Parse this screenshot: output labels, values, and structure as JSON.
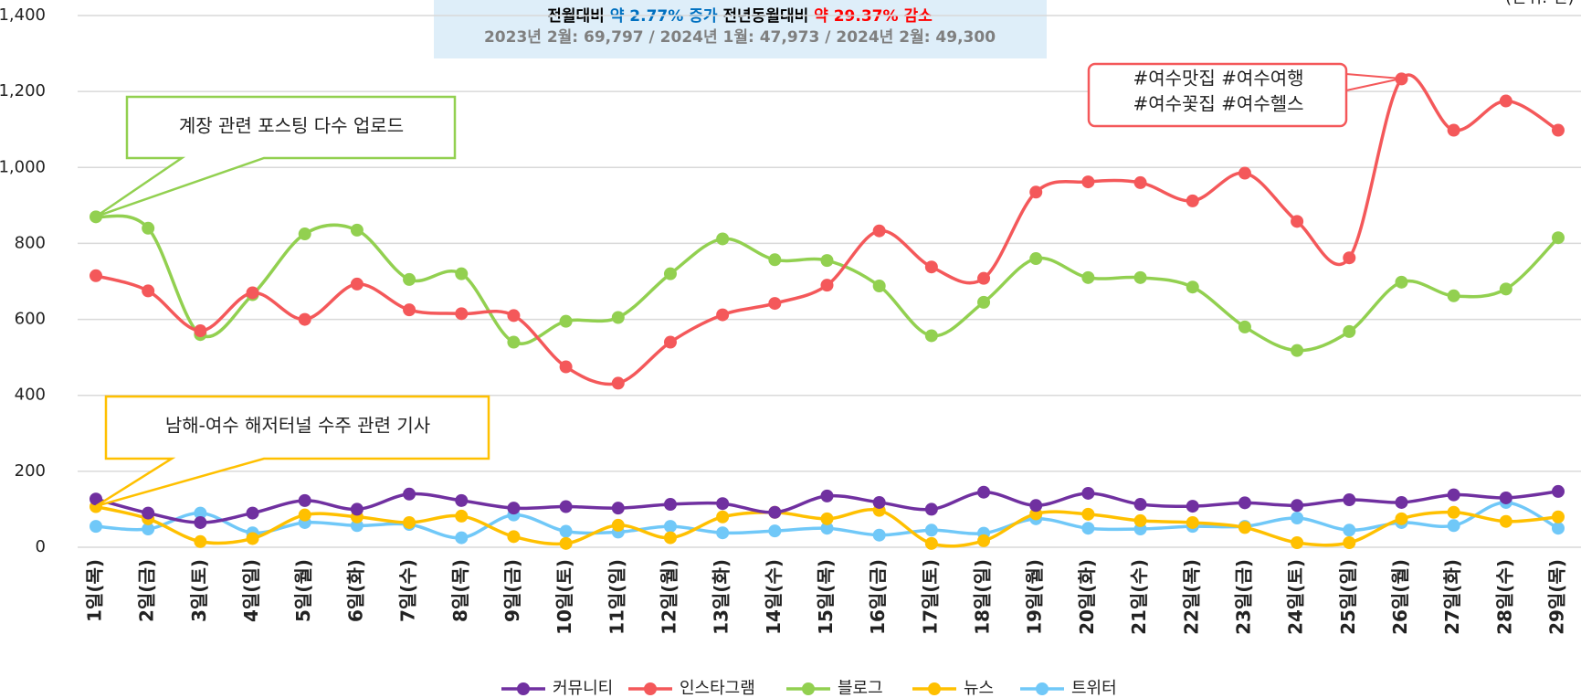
{
  "chart_data": {
    "type": "line",
    "unit_note": "(단위: 건)",
    "header": {
      "line1": [
        {
          "text": "전월대비 ",
          "color": "#000000"
        },
        {
          "text": "약 2.77% 증가",
          "color": "#0070c0"
        },
        {
          "text": " 전년동월대비 ",
          "color": "#000000"
        },
        {
          "text": "약 29.37% 감소",
          "color": "#ff0000"
        }
      ],
      "line2": "2023년 2월: 69,797 / 2024년 1월: 47,973 / 2024년 2월: 49,300"
    },
    "annotations": {
      "blog": "계장 관련 포스팅 다수 업로드",
      "news": "남해-여수 해저터널 수주 관련 기사",
      "instagram": [
        "#여수맛집  #여수여행",
        "#여수꽃집  #여수헬스"
      ]
    },
    "categories": [
      "1일(목)",
      "2일(금)",
      "3일(토)",
      "4일(일)",
      "5일(월)",
      "6일(화)",
      "7일(수)",
      "8일(목)",
      "9일(금)",
      "10일(토)",
      "11일(일)",
      "12일(월)",
      "13일(화)",
      "14일(수)",
      "15일(목)",
      "16일(금)",
      "17일(토)",
      "18일(일)",
      "19일(월)",
      "20일(화)",
      "21일(수)",
      "22일(목)",
      "23일(금)",
      "24일(토)",
      "25일(일)",
      "26일(월)",
      "27일(화)",
      "28일(수)",
      "29일(목)"
    ],
    "series": [
      {
        "name": "커뮤니티",
        "color": "#7030a0",
        "values": [
          127,
          90,
          65,
          90,
          123,
          100,
          140,
          123,
          103,
          107,
          103,
          113,
          115,
          92,
          135,
          118,
          100,
          145,
          110,
          142,
          113,
          108,
          117,
          110,
          125,
          118,
          138,
          130,
          147
        ]
      },
      {
        "name": "인스타그램",
        "color": "#f4585a",
        "values": [
          715,
          675,
          570,
          670,
          600,
          693,
          625,
          615,
          610,
          475,
          432,
          540,
          612,
          642,
          690,
          833,
          738,
          708,
          935,
          962,
          960,
          912,
          985,
          858,
          762,
          1233,
          1098,
          1175,
          1098
        ]
      },
      {
        "name": "블로그",
        "color": "#92d050",
        "values": [
          870,
          840,
          560,
          665,
          825,
          835,
          705,
          720,
          540,
          595,
          605,
          720,
          812,
          757,
          755,
          688,
          557,
          645,
          760,
          710,
          710,
          685,
          580,
          518,
          568,
          698,
          662,
          680,
          815
        ]
      },
      {
        "name": "뉴스",
        "color": "#ffc000",
        "values": [
          107,
          75,
          15,
          23,
          85,
          80,
          65,
          82,
          28,
          10,
          58,
          25,
          80,
          92,
          75,
          97,
          10,
          17,
          88,
          87,
          70,
          65,
          52,
          12,
          12,
          75,
          92,
          68,
          80
        ]
      },
      {
        "name": "트위터",
        "color": "#70c8f8",
        "values": [
          55,
          48,
          90,
          38,
          65,
          57,
          60,
          25,
          85,
          42,
          40,
          55,
          38,
          43,
          50,
          32,
          45,
          37,
          75,
          50,
          48,
          55,
          55,
          77,
          45,
          65,
          57,
          118,
          50
        ]
      }
    ],
    "ylim": [
      0,
      1400
    ],
    "yticks": [
      0,
      200,
      400,
      600,
      800,
      {
        "value": 1000,
        "label": "1,000"
      },
      {
        "value": 1200,
        "label": "1,200"
      },
      {
        "value": 1400,
        "label": "1,400"
      }
    ],
    "grid": true,
    "legend": "bottom"
  }
}
